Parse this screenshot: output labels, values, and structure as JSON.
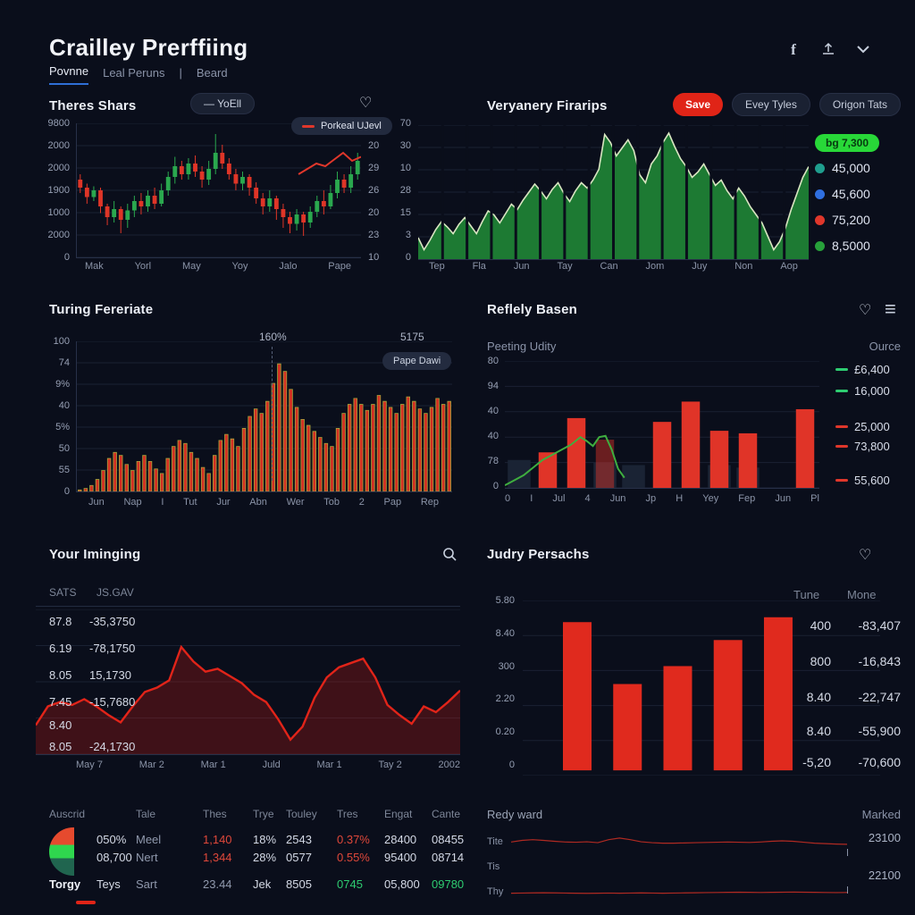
{
  "colors": {
    "accent_blue": "#2e6fd6",
    "up_green": "#2aa84e",
    "down_red": "#df3527",
    "area_green": "#1d7a33",
    "bar_red": "#d32f23",
    "line_red": "#e12419",
    "badge_green": "#28d838",
    "button_red": "#e02417"
  },
  "header": {
    "title": "Crailley Prerffiing",
    "tabs": [
      "Povnne",
      "Leal Peruns",
      "Beard"
    ],
    "separator": "|",
    "icons": [
      "facebook-icon",
      "upload-icon",
      "chevron-down-icon"
    ]
  },
  "panel1": {
    "title": "Theres Shars",
    "pill": "— YoEll",
    "legend": "Porkeal UJevl",
    "y_left": [
      "9800",
      "2000",
      "2000",
      "1900",
      "1000",
      "2000",
      "0"
    ],
    "y_right": [
      "78",
      "20",
      "29",
      "26",
      "20",
      "23",
      "10"
    ],
    "x": [
      "Mak",
      "Yorl",
      "May",
      "Yoy",
      "Jalo",
      "Pape"
    ]
  },
  "panel2": {
    "title": "Veryanery Firarips",
    "buttons": [
      "Save",
      "Evey Tyles",
      "Origon Tats"
    ],
    "badge": "bg 7,300",
    "legend": [
      {
        "color": "#1f9e8e",
        "label": "45,000"
      },
      {
        "color": "#2f6fe0",
        "label": "45,600"
      },
      {
        "color": "#e0372b",
        "label": "75,200"
      },
      {
        "color": "#27a03a",
        "label": "8,5000"
      }
    ],
    "y": [
      "70",
      "30",
      "10",
      "28",
      "15",
      "3",
      "0"
    ],
    "x": [
      "Tep",
      "Fla",
      "Jun",
      "Tay",
      "Can",
      "Jom",
      "Juy",
      "Non",
      "Aop"
    ]
  },
  "panel3": {
    "title": "Turing Fereriate",
    "annotation": "160%",
    "annotation2": "5175",
    "tooltip": "Pape Dawi",
    "y": [
      "100",
      "74",
      "9%",
      "40",
      "5%",
      "50",
      "55",
      "0"
    ],
    "x": [
      "Jun",
      "Nap",
      "I",
      "Tut",
      "Jur",
      "Abn",
      "Wer",
      "Tob",
      "2",
      "Pap",
      "Rep"
    ]
  },
  "panel4": {
    "title": "Reflely Basen",
    "sub_left": "Peeting Udity",
    "sub_right": "Ource",
    "y": [
      "80",
      "94",
      "40",
      "40",
      "78",
      "0"
    ],
    "x": [
      "0",
      "I",
      "Jul",
      "4",
      "Jun",
      "Jp",
      "H",
      "Yey",
      "Fep",
      "Jun",
      "Pl"
    ],
    "legend": [
      {
        "color": "#2ecc71",
        "label": "£6,400"
      },
      {
        "color": "#2ecc71",
        "label": "16,000"
      },
      {
        "color": "#e0372b",
        "label": "25,000"
      },
      {
        "color": "#e0372b",
        "label": "73,800"
      },
      {
        "color": "#e0372b",
        "label": "55,600"
      }
    ]
  },
  "panel5": {
    "title": "Your Iminging",
    "col1": "SATS",
    "col2": "JS.GAV",
    "rows": [
      [
        "87.8",
        "-35,3750"
      ],
      [
        "6.19",
        "-78,1750"
      ],
      [
        "8.05",
        "15,1730"
      ],
      [
        "7.45",
        "-15,7680"
      ],
      [
        "8.40",
        ""
      ],
      [
        "8.05",
        "-24,1730"
      ]
    ],
    "x": [
      "May 7",
      "Mar 2",
      "Mar 1",
      "Juld",
      "Mar 1",
      "Tay 2",
      "2002"
    ]
  },
  "panel6": {
    "title": "Judry Persachs",
    "y": [
      "5.80",
      "8.40",
      "300",
      "2.20",
      "0.20",
      "0"
    ],
    "col1": "Tune",
    "col2": "Mone",
    "rows": [
      [
        "400",
        "-83,407"
      ],
      [
        "800",
        "-16,843"
      ],
      [
        "8.40",
        "-22,747"
      ],
      [
        "8.40",
        "-55,900"
      ],
      [
        "-5,20",
        "-70,600"
      ]
    ]
  },
  "table": {
    "headers": [
      "Auscrid",
      "Tale",
      "Thes",
      "Trye",
      "Touley",
      "Tres",
      "Engat",
      "Cante"
    ],
    "pie_label": "Torgy",
    "rows": [
      [
        "050%",
        "Meel",
        "1,140",
        "18%",
        "2543",
        "0.37%",
        "28400",
        "08455"
      ],
      [
        "08,700",
        "Nert",
        "1,344",
        "28%",
        "0577",
        "0.55%",
        "95400",
        "08714"
      ],
      [
        "Teys",
        "Sart",
        "23.44",
        "Jek",
        "8505",
        "0745",
        "05,800",
        "09780"
      ]
    ]
  },
  "panel8": {
    "title": "Redy ward",
    "right": "Marked",
    "rows": [
      {
        "label": "Tite",
        "value": "23100"
      },
      {
        "label": "Tis",
        "value": ""
      },
      {
        "label": "Thy",
        "value": "22100"
      }
    ]
  },
  "chart_data": {
    "theres_shars": {
      "type": "candlestick",
      "grid": 7,
      "up": "#2aa84e",
      "down": "#df3527",
      "candles": [
        [
          58,
          52,
          48,
          62
        ],
        [
          52,
          45,
          40,
          55
        ],
        [
          45,
          50,
          42,
          53
        ],
        [
          50,
          38,
          33,
          52
        ],
        [
          38,
          30,
          24,
          40
        ],
        [
          30,
          36,
          26,
          42
        ],
        [
          36,
          28,
          18,
          38
        ],
        [
          28,
          35,
          22,
          40
        ],
        [
          35,
          42,
          30,
          46
        ],
        [
          42,
          38,
          32,
          48
        ],
        [
          38,
          46,
          34,
          50
        ],
        [
          46,
          40,
          36,
          52
        ],
        [
          40,
          50,
          38,
          55
        ],
        [
          50,
          60,
          46,
          64
        ],
        [
          60,
          68,
          55,
          75
        ],
        [
          68,
          62,
          58,
          72
        ],
        [
          62,
          70,
          58,
          74
        ],
        [
          70,
          64,
          60,
          76
        ],
        [
          64,
          58,
          52,
          68
        ],
        [
          58,
          66,
          54,
          72
        ],
        [
          66,
          78,
          62,
          92
        ],
        [
          78,
          70,
          66,
          84
        ],
        [
          70,
          62,
          58,
          74
        ],
        [
          62,
          55,
          50,
          66
        ],
        [
          55,
          60,
          50,
          64
        ],
        [
          60,
          52,
          46,
          62
        ],
        [
          52,
          44,
          40,
          56
        ],
        [
          44,
          38,
          32,
          48
        ],
        [
          38,
          44,
          34,
          50
        ],
        [
          44,
          36,
          28,
          46
        ],
        [
          36,
          30,
          22,
          40
        ],
        [
          30,
          25,
          18,
          34
        ],
        [
          25,
          32,
          20,
          36
        ],
        [
          32,
          26,
          16,
          34
        ],
        [
          26,
          34,
          22,
          38
        ],
        [
          34,
          42,
          30,
          46
        ],
        [
          42,
          38,
          32,
          50
        ],
        [
          38,
          48,
          36,
          54
        ],
        [
          48,
          58,
          44,
          64
        ],
        [
          58,
          52,
          48,
          62
        ],
        [
          52,
          62,
          48,
          68
        ],
        [
          62,
          72,
          58,
          78
        ]
      ],
      "line": {
        "from": 78,
        "color": "#e0372b",
        "points": [
          62,
          66,
          70,
          68,
          73,
          78,
          72,
          75
        ]
      }
    },
    "veryanery_firarips": {
      "type": "area",
      "grid": 7,
      "fill": "#1d7a33",
      "stroke": "#d9e6c2",
      "bg": "#0a0e1b",
      "dividers": 16,
      "values": [
        16,
        7,
        14,
        22,
        28,
        24,
        19,
        26,
        31,
        25,
        19,
        28,
        36,
        33,
        27,
        34,
        41,
        37,
        44,
        50,
        56,
        51,
        45,
        52,
        57,
        49,
        43,
        51,
        57,
        53,
        59,
        67,
        93,
        87,
        77,
        83,
        89,
        81,
        63,
        57,
        71,
        77,
        87,
        94,
        84,
        75,
        69,
        61,
        65,
        71,
        63,
        55,
        59,
        51,
        45,
        53,
        47,
        39,
        33,
        27,
        17,
        7,
        13,
        23,
        37,
        49,
        61,
        69
      ]
    },
    "turing_fereriate": {
      "type": "bars",
      "grid": 8,
      "fill": "#d32f23",
      "stroke": "#a7a63c",
      "values": [
        1,
        2,
        4,
        8,
        14,
        22,
        26,
        24,
        18,
        14,
        20,
        24,
        20,
        15,
        12,
        22,
        30,
        34,
        32,
        26,
        22,
        16,
        12,
        24,
        34,
        38,
        35,
        30,
        42,
        50,
        55,
        52,
        60,
        72,
        85,
        80,
        68,
        56,
        48,
        44,
        40,
        36,
        32,
        30,
        42,
        52,
        58,
        62,
        58,
        54,
        58,
        64,
        60,
        56,
        52,
        58,
        63,
        60,
        55,
        52,
        56,
        62,
        58,
        60
      ]
    },
    "reflely_basen": {
      "type": "barsline",
      "grid": 6,
      "slots": 11,
      "fill": "#e03428",
      "bg_fill": "#1a2334",
      "line_color": "#3fae3f",
      "bg_bars": [
        22,
        0,
        0,
        20,
        18,
        0,
        0,
        18,
        16,
        0,
        0
      ],
      "bars": [
        {
          "x": 1,
          "v": 28
        },
        {
          "x": 2,
          "v": 55
        },
        {
          "x": 3,
          "v": 38,
          "muted": true
        },
        {
          "x": 5,
          "v": 52
        },
        {
          "x": 6,
          "v": 68
        },
        {
          "x": 7,
          "v": 45
        },
        {
          "x": 8,
          "v": 43
        },
        {
          "x": 10,
          "v": 62
        }
      ],
      "line": [
        [
          0,
          2
        ],
        [
          3,
          6
        ],
        [
          6,
          10
        ],
        [
          9,
          16
        ],
        [
          12,
          22
        ],
        [
          15,
          26
        ],
        [
          18,
          30
        ],
        [
          21,
          34
        ],
        [
          24,
          40
        ],
        [
          26,
          37
        ],
        [
          28,
          33
        ],
        [
          30,
          40
        ],
        [
          32,
          41
        ],
        [
          34,
          30
        ],
        [
          36,
          15
        ],
        [
          38,
          8
        ]
      ]
    },
    "your_iminging": {
      "type": "line",
      "grid": 5,
      "stroke": "#e12419",
      "fill_from": "rgba(190,25,20,0.30)",
      "values": [
        20,
        33,
        36,
        34,
        38,
        33,
        27,
        22,
        33,
        43,
        46,
        51,
        74,
        64,
        57,
        59,
        54,
        49,
        41,
        36,
        24,
        10,
        19,
        39,
        53,
        60,
        63,
        66,
        53,
        34,
        27,
        21,
        33,
        29,
        36,
        44
      ]
    },
    "judry_persachs": {
      "type": "simplebars",
      "grid": 6,
      "fill": "#e02a1e",
      "start": 11.25,
      "step": 14.06,
      "w": 8,
      "baseline": 97,
      "scale": 0.93,
      "values": [
        91,
        53,
        64,
        80,
        94
      ]
    },
    "spark_tite": {
      "type": "spark",
      "color": "#b02a22",
      "values": [
        45,
        52,
        55,
        52,
        48,
        45,
        44,
        46,
        42,
        55,
        62,
        55,
        46,
        42,
        40,
        40,
        41,
        42,
        43,
        44,
        45,
        44,
        43,
        45,
        48,
        50,
        48,
        44,
        40,
        38,
        36,
        35
      ]
    },
    "spark_thy": {
      "type": "spark",
      "color": "#b02a22",
      "values": [
        40,
        41,
        42,
        43,
        42,
        41,
        40,
        39,
        40,
        41,
        40,
        41,
        42,
        41,
        40,
        41,
        42,
        43,
        44,
        45,
        46,
        47,
        46,
        45,
        46,
        47,
        48,
        47,
        46,
        45,
        44,
        45
      ]
    }
  }
}
